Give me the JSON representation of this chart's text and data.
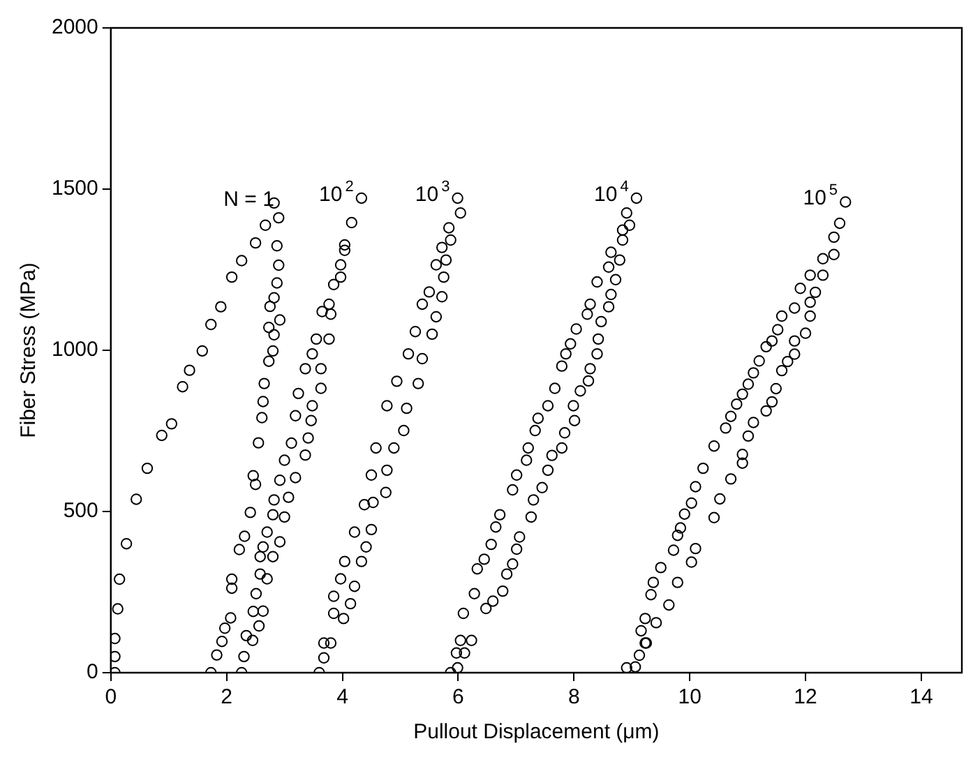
{
  "chart_data": {
    "type": "scatter",
    "xlabel": "Pullout Displacement (μm)",
    "ylabel": "Fiber Stress (MPa)",
    "xlim": [
      0,
      14.7
    ],
    "ylim": [
      0,
      2000
    ],
    "xticks": [
      0,
      2,
      4,
      6,
      8,
      10,
      12,
      14
    ],
    "yticks": [
      0,
      500,
      1000,
      1500,
      2000
    ],
    "grid": false,
    "legend": false,
    "marker": "circle",
    "series": [
      {
        "name": "N = 1",
        "color": "#000000",
        "x": [
          0.07,
          0.07,
          0.07,
          0.12,
          0.15,
          0.27,
          0.44,
          0.63,
          0.88,
          1.05,
          1.24,
          1.36,
          1.58,
          1.73,
          1.9,
          2.09,
          2.26,
          2.5,
          2.67,
          2.82,
          2.9,
          2.87,
          2.9,
          2.87,
          2.82,
          2.75,
          2.92,
          2.73,
          2.82,
          2.8,
          2.73,
          2.65,
          2.63,
          2.61,
          2.55,
          2.46,
          2.5,
          2.41,
          2.31,
          2.22,
          2.09,
          2.09,
          2.07,
          1.97,
          1.92,
          1.83,
          1.73
        ],
        "values": [
          0,
          50,
          106,
          198,
          290,
          400,
          538,
          634,
          736,
          772,
          887,
          938,
          998,
          1080,
          1135,
          1227,
          1278,
          1333,
          1388,
          1457,
          1411,
          1324,
          1264,
          1209,
          1163,
          1136,
          1094,
          1071,
          1048,
          998,
          966,
          897,
          841,
          791,
          713,
          611,
          584,
          497,
          423,
          382,
          290,
          262,
          170,
          138,
          97,
          55,
          0
        ]
      },
      {
        "name": "10$^{2}$",
        "color": "#000000",
        "x": [
          2.26,
          2.3,
          2.34,
          2.45,
          2.46,
          2.51,
          2.58,
          2.58,
          2.63,
          2.7,
          2.8,
          2.82,
          2.92,
          3.0,
          3.12,
          3.19,
          3.24,
          3.36,
          3.48,
          3.55,
          3.65,
          3.77,
          3.85,
          3.97,
          4.04,
          4.16,
          4.33,
          4.04,
          3.97,
          3.8,
          3.77,
          3.63,
          3.63,
          3.48,
          3.46,
          3.41,
          3.36,
          3.19,
          3.07,
          3.0,
          2.92,
          2.8,
          2.7,
          2.63,
          2.56
        ],
        "values": [
          0,
          50,
          115,
          100,
          190,
          245,
          306,
          360,
          390,
          436,
          490,
          536,
          597,
          659,
          712,
          797,
          866,
          943,
          989,
          1035,
          1120,
          1143,
          1204,
          1265,
          1327,
          1396,
          1472,
          1310,
          1227,
          1112,
          1035,
          943,
          882,
          828,
          782,
          728,
          675,
          605,
          544,
          483,
          406,
          360,
          291,
          191,
          145
        ]
      },
      {
        "name": "10$^{3}$",
        "color": "#000000",
        "x": [
          3.6,
          3.68,
          3.85,
          3.85,
          3.97,
          4.04,
          4.21,
          4.38,
          4.5,
          4.58,
          4.77,
          4.94,
          5.14,
          5.26,
          5.38,
          5.5,
          5.62,
          5.72,
          5.84,
          5.99,
          6.04,
          5.87,
          5.79,
          5.75,
          5.72,
          5.62,
          5.55,
          5.38,
          5.31,
          5.11,
          5.06,
          4.89,
          4.77,
          4.75,
          4.53,
          4.5,
          4.41,
          4.33,
          4.21,
          4.14,
          4.02,
          3.8,
          3.68
        ],
        "values": [
          0,
          92,
          184,
          237,
          291,
          345,
          436,
          521,
          613,
          697,
          828,
          904,
          989,
          1058,
          1143,
          1181,
          1265,
          1319,
          1380,
          1472,
          1426,
          1342,
          1280,
          1227,
          1166,
          1104,
          1050,
          974,
          897,
          820,
          751,
          697,
          628,
          559,
          528,
          444,
          390,
          345,
          268,
          214,
          168,
          92,
          46
        ]
      },
      {
        "name": "10$^{4}$",
        "color": "#000000",
        "x": [
          5.87,
          5.97,
          6.04,
          6.09,
          6.28,
          6.33,
          6.45,
          6.57,
          6.65,
          6.72,
          6.94,
          7.01,
          7.18,
          7.21,
          7.33,
          7.38,
          7.55,
          7.67,
          7.79,
          7.86,
          7.94,
          8.04,
          8.23,
          8.28,
          8.4,
          8.6,
          8.64,
          8.84,
          8.91,
          9.08,
          8.96,
          8.84,
          8.79,
          8.72,
          8.64,
          8.6,
          8.47,
          8.42,
          8.4,
          8.28,
          8.25,
          8.11,
          7.99,
          8.01,
          7.84,
          7.79,
          7.62,
          7.55,
          7.45,
          7.3,
          7.26,
          7.06,
          7.01,
          6.94,
          6.84,
          6.77,
          6.6,
          6.48,
          6.23,
          6.11,
          5.99
        ],
        "values": [
          0,
          61,
          100,
          184,
          245,
          322,
          352,
          398,
          452,
          490,
          567,
          613,
          659,
          697,
          751,
          789,
          828,
          882,
          951,
          989,
          1020,
          1066,
          1112,
          1143,
          1212,
          1258,
          1304,
          1373,
          1426,
          1472,
          1388,
          1342,
          1280,
          1219,
          1173,
          1135,
          1089,
          1035,
          989,
          943,
          905,
          874,
          828,
          782,
          744,
          697,
          674,
          628,
          574,
          536,
          483,
          421,
          383,
          337,
          306,
          253,
          222,
          199,
          100,
          61,
          15
        ]
      },
      {
        "name": "10$^{5}$",
        "color": "#000000",
        "x": [
          8.91,
          9.13,
          9.23,
          9.16,
          9.23,
          9.33,
          9.37,
          9.5,
          9.72,
          9.79,
          9.84,
          9.91,
          10.03,
          10.1,
          10.23,
          10.42,
          10.62,
          10.71,
          10.81,
          10.91,
          11.01,
          11.1,
          11.2,
          11.32,
          11.42,
          11.52,
          11.59,
          11.81,
          11.91,
          12.08,
          12.3,
          12.49,
          12.59,
          12.69,
          12.49,
          12.3,
          12.17,
          12.08,
          12.08,
          12.0,
          11.81,
          11.81,
          11.69,
          11.59,
          11.49,
          11.42,
          11.32,
          11.1,
          11.01,
          10.91,
          10.91,
          10.71,
          10.52,
          10.42,
          10.1,
          10.03,
          9.79,
          9.64,
          9.42,
          9.25,
          9.06
        ],
        "values": [
          15,
          54,
          92,
          130,
          168,
          242,
          280,
          326,
          380,
          426,
          449,
          492,
          526,
          577,
          634,
          703,
          759,
          795,
          833,
          864,
          895,
          930,
          967,
          1011,
          1029,
          1064,
          1106,
          1131,
          1192,
          1233,
          1284,
          1351,
          1394,
          1460,
          1297,
          1233,
          1180,
          1149,
          1106,
          1053,
          1029,
          988,
          965,
          937,
          881,
          840,
          812,
          776,
          734,
          677,
          650,
          601,
          539,
          481,
          385,
          343,
          280,
          210,
          155,
          92,
          18
        ]
      }
    ]
  }
}
